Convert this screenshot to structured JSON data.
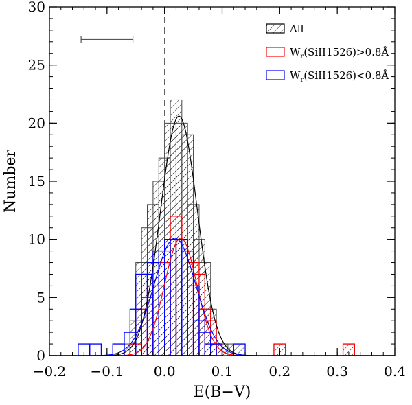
{
  "chart_data": {
    "type": "histogram",
    "xlabel": "E(B−V)",
    "ylabel": "Number",
    "xlim": [
      -0.2,
      0.4
    ],
    "ylim": [
      0,
      30
    ],
    "x_ticks": [
      -0.2,
      -0.1,
      0.0,
      0.1,
      0.2,
      0.3,
      0.4
    ],
    "x_tick_labels": [
      "−0.2",
      "−0.1",
      "0.0",
      "0.1",
      "0.2",
      "0.3",
      "0.4"
    ],
    "y_ticks": [
      0,
      5,
      10,
      15,
      20,
      25,
      30
    ],
    "y_tick_labels": [
      "0",
      "5",
      "10",
      "15",
      "20",
      "25",
      "30"
    ],
    "bin_width": 0.02,
    "reference_line_x": 0.0,
    "error_bar": {
      "center_x": -0.1,
      "half_width": 0.045,
      "y": 27.2
    },
    "legend": {
      "position": "top-right",
      "entries": [
        {
          "label": "All",
          "style": "hatched",
          "color": "#000000"
        },
        {
          "label_pre": "W",
          "label_sub": "r",
          "label_post": "(SiII1526)>0.8Å",
          "style": "outline",
          "color": "#ff0000"
        },
        {
          "label_pre": "W",
          "label_sub": "r",
          "label_post": "(SiII1526)<0.8Å",
          "style": "outline",
          "color": "#0000ff"
        }
      ]
    },
    "series": [
      {
        "name": "All",
        "style": "hatched",
        "color": "#000000",
        "bins": [
          {
            "x": -0.06,
            "count": 1
          },
          {
            "x": -0.05,
            "count": 3
          },
          {
            "x": -0.04,
            "count": 8
          },
          {
            "x": -0.03,
            "count": 11
          },
          {
            "x": -0.02,
            "count": 13
          },
          {
            "x": -0.01,
            "count": 15
          },
          {
            "x": 0.0,
            "count": 17
          },
          {
            "x": 0.01,
            "count": 20
          },
          {
            "x": 0.02,
            "count": 22
          },
          {
            "x": 0.03,
            "count": 20
          },
          {
            "x": 0.04,
            "count": 19
          },
          {
            "x": 0.05,
            "count": 13
          },
          {
            "x": 0.06,
            "count": 10
          },
          {
            "x": 0.07,
            "count": 8
          },
          {
            "x": 0.08,
            "count": 4
          },
          {
            "x": 0.09,
            "count": 1
          },
          {
            "x": 0.1,
            "count": 1
          },
          {
            "x": 0.11,
            "count": 1
          },
          {
            "x": 0.13,
            "count": 1
          },
          {
            "x": 0.2,
            "count": 1
          },
          {
            "x": 0.32,
            "count": 1
          }
        ],
        "fit": {
          "amplitude": 20.6,
          "mean": 0.025,
          "sigma": 0.032
        }
      },
      {
        "name": "Wr(SiII1526)>0.8Å",
        "style": "outline",
        "color": "#ff0000",
        "bins": [
          {
            "x": -0.06,
            "count": 0
          },
          {
            "x": -0.05,
            "count": 1
          },
          {
            "x": -0.04,
            "count": 4
          },
          {
            "x": -0.03,
            "count": 5
          },
          {
            "x": -0.02,
            "count": 6
          },
          {
            "x": -0.01,
            "count": 6
          },
          {
            "x": 0.0,
            "count": 8
          },
          {
            "x": 0.01,
            "count": 10
          },
          {
            "x": 0.02,
            "count": 12
          },
          {
            "x": 0.03,
            "count": 10
          },
          {
            "x": 0.04,
            "count": 9
          },
          {
            "x": 0.05,
            "count": 8
          },
          {
            "x": 0.06,
            "count": 7
          },
          {
            "x": 0.07,
            "count": 4
          },
          {
            "x": 0.08,
            "count": 3
          },
          {
            "x": 0.09,
            "count": 1
          },
          {
            "x": 0.2,
            "count": 1
          },
          {
            "x": 0.32,
            "count": 1
          }
        ],
        "fit": {
          "amplitude": 10.1,
          "mean": 0.028,
          "sigma": 0.028
        }
      },
      {
        "name": "Wr(SiII1526)<0.8Å",
        "style": "outline",
        "color": "#0000ff",
        "bins": [
          {
            "x": -0.14,
            "count": 1
          },
          {
            "x": -0.12,
            "count": 1
          },
          {
            "x": -0.08,
            "count": 1
          },
          {
            "x": -0.06,
            "count": 2
          },
          {
            "x": -0.05,
            "count": 4
          },
          {
            "x": -0.04,
            "count": 7
          },
          {
            "x": -0.03,
            "count": 7
          },
          {
            "x": -0.02,
            "count": 8
          },
          {
            "x": -0.01,
            "count": 9
          },
          {
            "x": 0.0,
            "count": 9
          },
          {
            "x": 0.01,
            "count": 10
          },
          {
            "x": 0.02,
            "count": 10
          },
          {
            "x": 0.03,
            "count": 10
          },
          {
            "x": 0.04,
            "count": 9
          },
          {
            "x": 0.05,
            "count": 6
          },
          {
            "x": 0.06,
            "count": 3
          },
          {
            "x": 0.07,
            "count": 2
          },
          {
            "x": 0.08,
            "count": 1
          },
          {
            "x": 0.09,
            "count": 1
          },
          {
            "x": 0.13,
            "count": 1
          }
        ],
        "fit": {
          "amplitude": 10.1,
          "mean": 0.018,
          "sigma": 0.036
        }
      }
    ]
  }
}
